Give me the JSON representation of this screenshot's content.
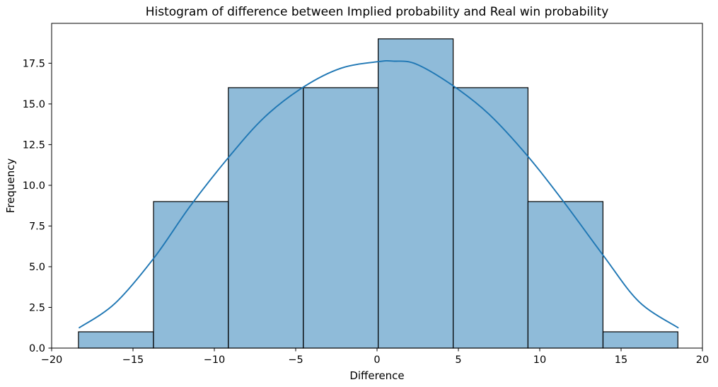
{
  "chart_data": {
    "type": "bar",
    "subtype": "histogram-with-kde",
    "title": "Histogram of difference between Implied probability and Real win probability",
    "xlabel": "Difference",
    "ylabel": "Frequency",
    "xlim": [
      -20,
      20
    ],
    "ylim": [
      0,
      19.95
    ],
    "grid": false,
    "legend": null,
    "x_tick_values": [
      -20,
      -15,
      -10,
      -5,
      0,
      5,
      10,
      15,
      20
    ],
    "x_tick_labels": [
      "−20",
      "−15",
      "−10",
      "−5",
      "0",
      "5",
      "10",
      "15",
      "20"
    ],
    "y_tick_values": [
      0,
      2.5,
      5,
      7.5,
      10,
      12.5,
      15,
      17.5
    ],
    "y_tick_labels": [
      "0.0",
      "2.5",
      "5.0",
      "7.5",
      "10.0",
      "12.5",
      "15.0",
      "17.5"
    ],
    "bin_edges": [
      -18.35,
      -13.74,
      -9.14,
      -4.53,
      0.07,
      4.68,
      9.28,
      13.89,
      18.49
    ],
    "counts": [
      1,
      9,
      16,
      16,
      19,
      16,
      9,
      1
    ],
    "kde_points": [
      [
        -18.3,
        1.25
      ],
      [
        -16.1,
        2.75
      ],
      [
        -13.7,
        5.55
      ],
      [
        -11.5,
        8.7
      ],
      [
        -9.1,
        11.75
      ],
      [
        -6.9,
        14.2
      ],
      [
        -4.5,
        16.05
      ],
      [
        -2.2,
        17.2
      ],
      [
        0.1,
        17.6
      ],
      [
        1.0,
        17.63
      ],
      [
        2.4,
        17.45
      ],
      [
        4.7,
        16.1
      ],
      [
        6.9,
        14.35
      ],
      [
        9.3,
        11.75
      ],
      [
        11.5,
        8.95
      ],
      [
        13.9,
        5.7
      ],
      [
        16.1,
        2.85
      ],
      [
        18.5,
        1.25
      ]
    ],
    "colors": {
      "bar_fill": "#1f77b4",
      "bar_fill_alpha": 0.5,
      "bar_edge": "#000000",
      "curve": "#1f77b4",
      "spine": "#000000",
      "background": "#ffffff"
    }
  }
}
